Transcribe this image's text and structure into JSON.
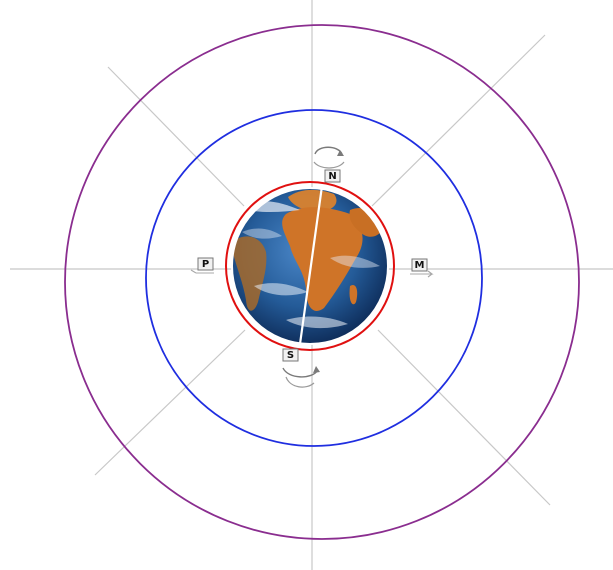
{
  "diagram": {
    "colors": {
      "outer_orbit": "#8a2d8f",
      "middle_orbit": "#1f2ee0",
      "inner_orbit": "#e01010",
      "axis": "#c8c8c8",
      "ocean": "#1f4f8f",
      "land": "#d8782a",
      "earth_axis": "#ffffff"
    },
    "labels": {
      "north": "N",
      "south": "S",
      "left": "P",
      "right": "M"
    },
    "icons": {
      "rotate_top": "rotate-arrows-icon",
      "rotate_bottom": "rotate-arrows-icon",
      "earth": "earth-globe-icon"
    }
  }
}
